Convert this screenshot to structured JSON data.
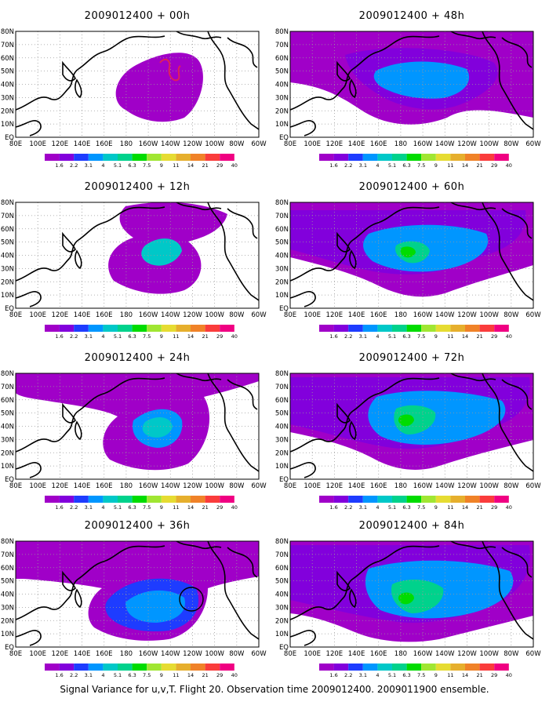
{
  "caption": "Signal Variance for u,v,T. Flight 20. Observation time 2009012400. 2009011900 ensemble.",
  "panels": [
    {
      "title": "2009012400 + 00h",
      "lead": "00h"
    },
    {
      "title": "2009012400 + 12h",
      "lead": "12h"
    },
    {
      "title": "2009012400 + 24h",
      "lead": "24h"
    },
    {
      "title": "2009012400 + 36h",
      "lead": "36h"
    },
    {
      "title": "2009012400 + 48h",
      "lead": "48h"
    },
    {
      "title": "2009012400 + 60h",
      "lead": "60h"
    },
    {
      "title": "2009012400 + 72h",
      "lead": "72h"
    },
    {
      "title": "2009012400 + 84h",
      "lead": "84h"
    }
  ],
  "map": {
    "lon_labels": [
      "80E",
      "100E",
      "120E",
      "140E",
      "160E",
      "180",
      "160W",
      "140W",
      "120W",
      "100W",
      "80W",
      "60W"
    ],
    "lat_labels": [
      "80N",
      "70N",
      "60N",
      "50N",
      "40N",
      "30N",
      "20N",
      "10N",
      "EQ"
    ],
    "lon_range": [
      "80E",
      "60W"
    ],
    "lat_range": [
      "EQ",
      "80N"
    ]
  },
  "colorbar": {
    "labels": [
      "1.6",
      "2.2",
      "3.1",
      "4",
      "5.1",
      "6.3",
      "7.5",
      "9",
      "11",
      "14",
      "21",
      "29",
      "40"
    ],
    "colors": [
      "#a000c8",
      "#8200dc",
      "#1e3cff",
      "#0096ff",
      "#00c8c8",
      "#00d28c",
      "#00dc00",
      "#a0e632",
      "#e6dc32",
      "#e6af2d",
      "#f08228",
      "#fa3c3c",
      "#f00082"
    ]
  },
  "colors": {
    "land_outline": "#000000",
    "dot_grid": "#9a9a9a",
    "marker_red": "#e0205a",
    "marker_circle": "#000000"
  }
}
